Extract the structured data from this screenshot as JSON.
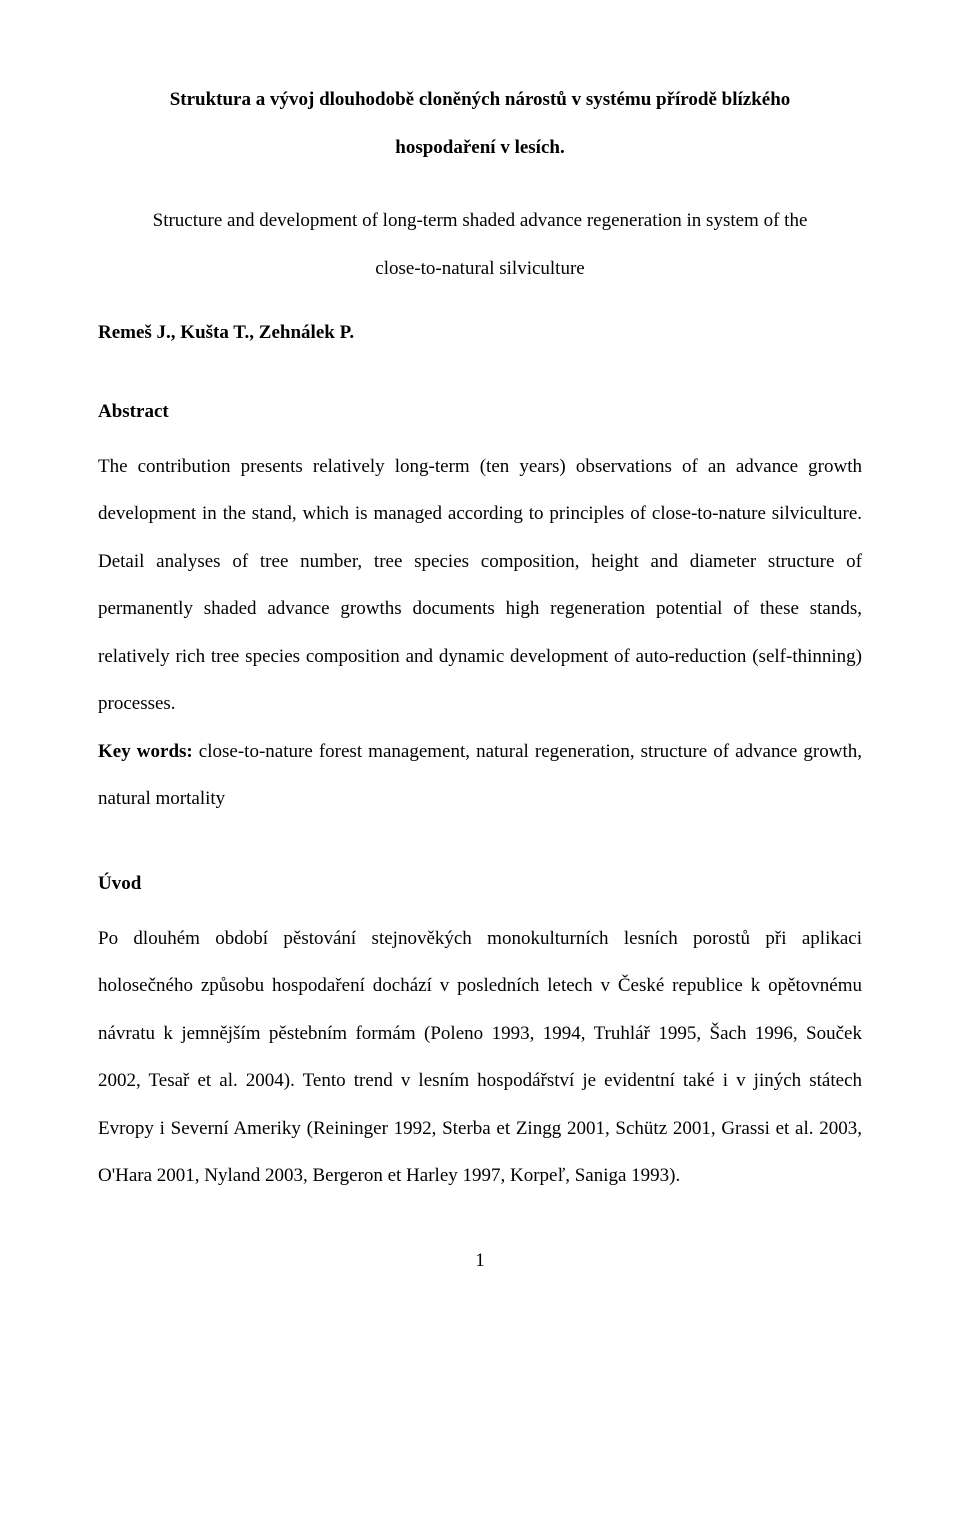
{
  "title_line1": "Struktura a vývoj dlouhodobě cloněných nárostů v systému přírodě blízkého",
  "title_line2": "hospodaření v lesích.",
  "subtitle_line1": "Structure and development of long-term shaded advance regeneration in system of the",
  "subtitle_line2": "close-to-natural silviculture",
  "authors": "Remeš J., Kušta T., Zehnálek P.",
  "abstract_heading": "Abstract",
  "abstract_text": "The contribution presents relatively long-term (ten years) observations of an advance growth development in the stand, which is managed according to principles of close-to-nature silviculture. Detail analyses of tree number, tree species composition, height and diameter structure of permanently shaded advance growths documents high regeneration potential of these stands, relatively rich tree species composition and dynamic development of auto-reduction (self-thinning) processes.",
  "keywords_label": "Key words:",
  "keywords_text": " close-to-nature forest management, natural regeneration, structure of advance growth, natural mortality",
  "uvod_heading": "Úvod",
  "uvod_text": "Po dlouhém období pěstování stejnověkých monokulturních lesních porostů při aplikaci holosečného způsobu hospodaření dochází v posledních letech v České republice k opětovnému návratu k jemnějším pěstebním formám (Poleno 1993, 1994, Truhlář 1995, Šach 1996, Souček 2002, Tesař et al. 2004). Tento trend v lesním hospodářství je evidentní také i v jiných státech Evropy i Severní Ameriky (Reininger 1992, Sterba et Zingg 2001, Schütz 2001, Grassi et al. 2003, O'Hara 2001, Nyland 2003, Bergeron et Harley 1997, Korpeľ, Saniga 1993).",
  "page_number": "1"
}
